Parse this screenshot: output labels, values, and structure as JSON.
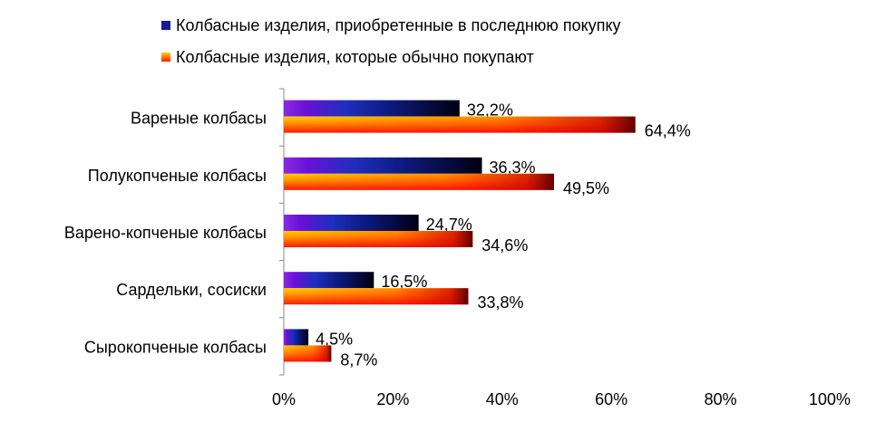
{
  "chart_data": {
    "type": "bar",
    "orientation": "horizontal",
    "categories": [
      "Вареные колбасы",
      "Полукопченые колбасы",
      "Варено-копченые колбасы",
      "Сардельки, сосиски",
      "Сырокопченые колбасы"
    ],
    "series": [
      {
        "name": "Колбасные изделия, приобретенные в последнюю покупку",
        "values": [
          32.2,
          36.3,
          24.7,
          16.5,
          4.5
        ],
        "labels": [
          "32,2%",
          "36,3%",
          "24,7%",
          "16,5%",
          "4,5%"
        ],
        "color": "#1a2ab8"
      },
      {
        "name": "Колбасные изделия, которые обычно покупают",
        "values": [
          64.4,
          49.5,
          34.6,
          33.8,
          8.7
        ],
        "labels": [
          "64,4%",
          "49,5%",
          "34,6%",
          "33,8%",
          "8,7%"
        ],
        "color": "#ff6a00"
      }
    ],
    "xlim": [
      0,
      100
    ],
    "xticks": [
      "0%",
      "20%",
      "40%",
      "60%",
      "80%",
      "100%"
    ],
    "legend_position": "top",
    "grid": false,
    "title": "",
    "xlabel": "",
    "ylabel": ""
  }
}
